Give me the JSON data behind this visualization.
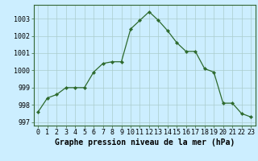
{
  "x": [
    0,
    1,
    2,
    3,
    4,
    5,
    6,
    7,
    8,
    9,
    10,
    11,
    12,
    13,
    14,
    15,
    16,
    17,
    18,
    19,
    20,
    21,
    22,
    23
  ],
  "y": [
    997.6,
    998.4,
    998.6,
    999.0,
    999.0,
    999.0,
    999.9,
    1000.4,
    1000.5,
    1000.5,
    1002.4,
    1002.9,
    1003.4,
    1002.9,
    1002.3,
    1001.6,
    1001.1,
    1001.1,
    1000.1,
    999.9,
    998.1,
    998.1,
    997.5,
    997.3
  ],
  "line_color": "#2d6a2d",
  "marker": "D",
  "marker_size": 2.2,
  "bg_color": "#cceeff",
  "grid_color": "#aacccc",
  "title": "Graphe pression niveau de la mer (hPa)",
  "ylim": [
    996.8,
    1003.8
  ],
  "xlim": [
    -0.5,
    23.5
  ],
  "yticks": [
    997,
    998,
    999,
    1000,
    1001,
    1002,
    1003
  ],
  "xticks": [
    0,
    1,
    2,
    3,
    4,
    5,
    6,
    7,
    8,
    9,
    10,
    11,
    12,
    13,
    14,
    15,
    16,
    17,
    18,
    19,
    20,
    21,
    22,
    23
  ],
  "title_fontsize": 7.0,
  "tick_fontsize": 6.0,
  "border_color": "#336633"
}
